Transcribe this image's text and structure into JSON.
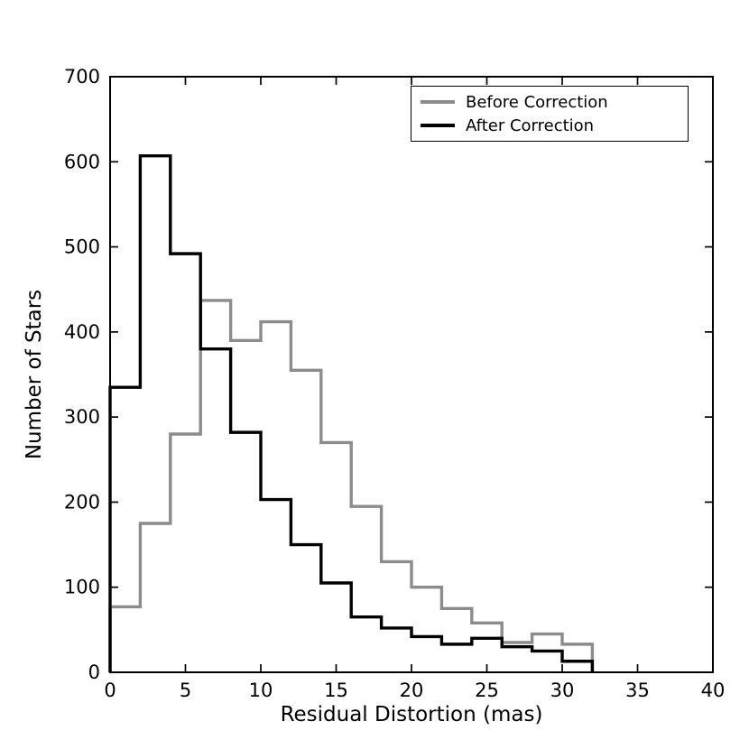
{
  "chart_data": {
    "type": "bar",
    "subtype": "step-histogram",
    "title": "",
    "xlabel": "Residual Distortion (mas)",
    "ylabel": "Number of Stars",
    "xlim": [
      0,
      40
    ],
    "ylim": [
      0,
      700
    ],
    "xticks": [
      0,
      5,
      10,
      15,
      20,
      25,
      30,
      35,
      40
    ],
    "yticks": [
      0,
      100,
      200,
      300,
      400,
      500,
      600,
      700
    ],
    "bin_start": 0,
    "bin_width": 2,
    "grid": false,
    "legend_position": "top-right",
    "series": [
      {
        "name": "Before Correction",
        "color": "#8c8c8c",
        "values": [
          77,
          175,
          280,
          437,
          390,
          412,
          355,
          270,
          195,
          130,
          100,
          75,
          58,
          35,
          45,
          33
        ]
      },
      {
        "name": "After Correction",
        "color": "#000000",
        "values": [
          335,
          607,
          492,
          380,
          282,
          203,
          150,
          105,
          65,
          52,
          42,
          33,
          40,
          30,
          25,
          13
        ]
      }
    ]
  }
}
